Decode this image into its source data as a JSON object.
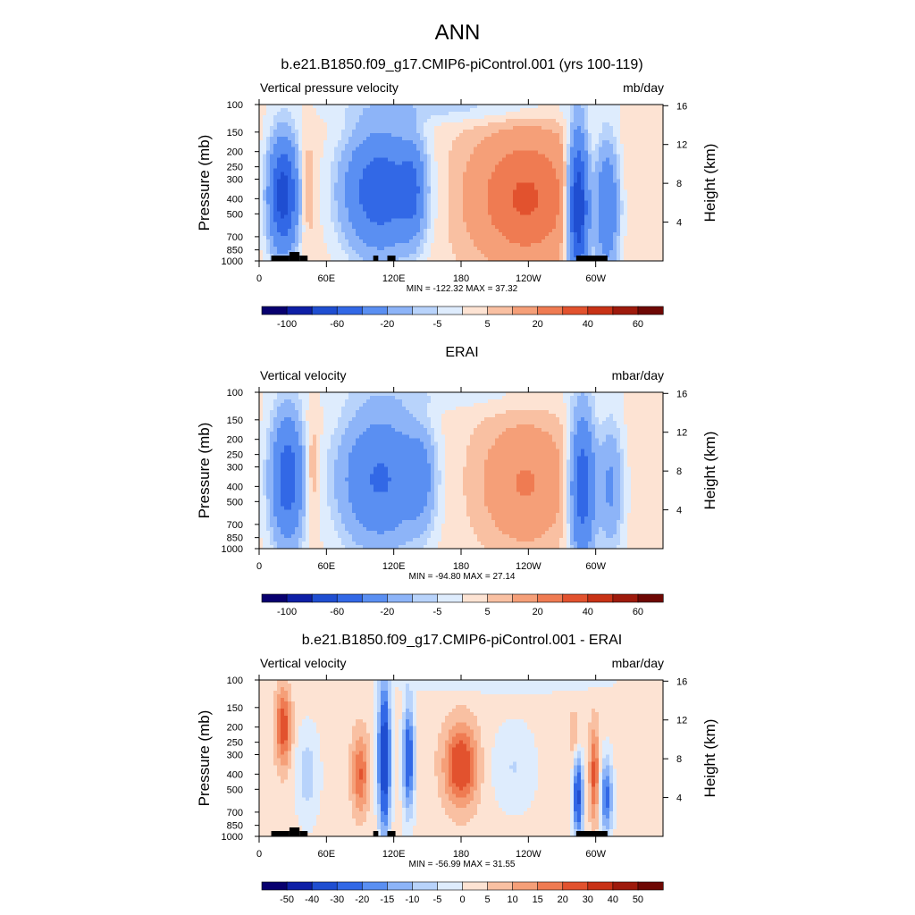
{
  "title": "ANN",
  "panels": [
    {
      "title": "b.e21.B1850.f09_g17.CMIP6-piControl.001 (yrs 100-119)",
      "left_label": "Vertical pressure velocity",
      "right_label": "mb/day",
      "ylabel": "Pressure (mb)",
      "y2label": "Height (km)",
      "stats": "MIN = -122.32  MAX =  37.32",
      "colorbar": {
        "labels": [
          "-100",
          "-60",
          "-20",
          "-5",
          "5",
          "20",
          "40",
          "60"
        ],
        "colors": [
          "#08006f",
          "#0e1fa6",
          "#1f4ed1",
          "#3268e6",
          "#5a8ff2",
          "#8db4f8",
          "#b8d3fb",
          "#deecfd",
          "#fde3d3",
          "#f9c0a2",
          "#f59f78",
          "#ef7b52",
          "#e2522e",
          "#c83216",
          "#9e1a0c",
          "#6e0804"
        ]
      },
      "orography": true
    },
    {
      "title": "ERAI",
      "left_label": "Vertical velocity",
      "right_label": "mbar/day",
      "ylabel": "Pressure (mb)",
      "y2label": "Height (km)",
      "stats": "MIN = -94.80  MAX =  27.14",
      "colorbar": {
        "labels": [
          "-100",
          "-60",
          "-20",
          "-5",
          "5",
          "20",
          "40",
          "60"
        ],
        "colors": [
          "#08006f",
          "#0e1fa6",
          "#1f4ed1",
          "#3268e6",
          "#5a8ff2",
          "#8db4f8",
          "#b8d3fb",
          "#deecfd",
          "#fde3d3",
          "#f9c0a2",
          "#f59f78",
          "#ef7b52",
          "#e2522e",
          "#c83216",
          "#9e1a0c",
          "#6e0804"
        ]
      },
      "orography": false
    },
    {
      "title": "b.e21.B1850.f09_g17.CMIP6-piControl.001 - ERAI",
      "left_label": "Vertical velocity",
      "right_label": "mbar/day",
      "ylabel": "Pressure (mb)",
      "y2label": "Height (km)",
      "stats": "MIN = -56.99  MAX =  31.55",
      "colorbar": {
        "labels": [
          "-50",
          "-40",
          "-30",
          "-20",
          "-15",
          "-10",
          "-5",
          "0",
          "5",
          "10",
          "15",
          "20",
          "30",
          "40",
          "50"
        ],
        "colors": [
          "#08006f",
          "#0e1fa6",
          "#1f4ed1",
          "#3268e6",
          "#5a8ff2",
          "#8db4f8",
          "#b8d3fb",
          "#deecfd",
          "#fde3d3",
          "#f9c0a2",
          "#f59f78",
          "#ef7b52",
          "#e2522e",
          "#c83216",
          "#9e1a0c",
          "#6e0804"
        ]
      },
      "orography": true
    }
  ],
  "chart_data": {
    "type": "heatmap",
    "x_ticks": [
      "0",
      "60E",
      "120E",
      "180",
      "120W",
      "60W"
    ],
    "x_values": [
      0,
      60,
      120,
      180,
      240,
      300
    ],
    "x_range": [
      0,
      360
    ],
    "y_ticks": [
      "100",
      "150",
      "200",
      "250",
      "300",
      "400",
      "500",
      "700",
      "850",
      "1000"
    ],
    "y_values": [
      100,
      150,
      200,
      250,
      300,
      400,
      500,
      700,
      850,
      1000
    ],
    "y_range": [
      1000,
      100
    ],
    "y_scale": "log",
    "y2_ticks": [
      "16",
      "12",
      "8",
      "4"
    ],
    "y2_values": [
      16,
      12,
      8,
      4
    ]
  }
}
